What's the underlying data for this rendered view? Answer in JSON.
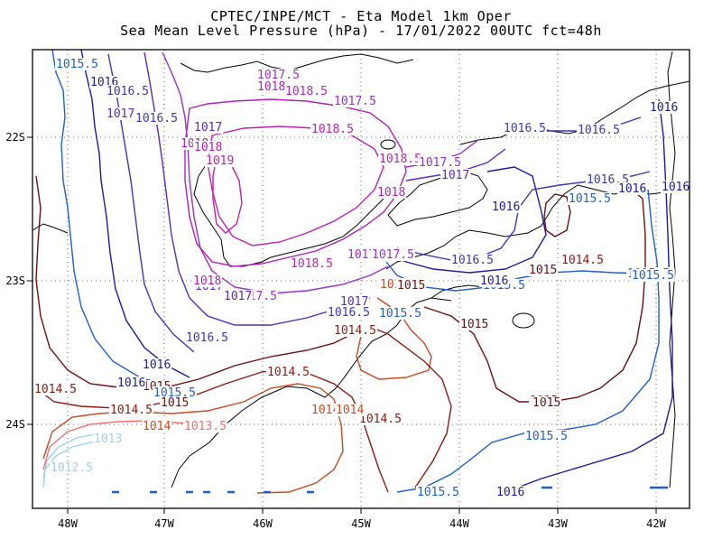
{
  "title_line1": "CPTEC/INPE/MCT -  Eta Model 1km Oper",
  "title_line2": "Sea Mean Level Pressure (hPa) - 17/01/2022 00UTC fct=48h",
  "axes": {
    "x_ticks": [
      "48W",
      "47W",
      "46W",
      "45W",
      "44W",
      "43W",
      "42W"
    ],
    "y_ticks": [
      "22S",
      "23S",
      "24S"
    ]
  },
  "colors": {
    "c1012_5": "#9fd0f0",
    "c1013": "#9fd0f0",
    "c1013_5": "#f07070",
    "c1014": "#c84a20",
    "c1014_5": "#8b1a10",
    "c1015": "#6b0f0f",
    "c1015_5": "#1e5fc8",
    "c1016": "#1a1aa0",
    "c1016_5": "#3a38b8",
    "c1017": "#5a2ab8",
    "c1017_5": "#9a30c8",
    "c1018": "#b020b8",
    "c1018_5": "#c020b0",
    "c1019": "#c81aa8"
  },
  "contour_labels": [
    {
      "text": "1015.5",
      "color": "#1e5fc8"
    },
    {
      "text": "1016",
      "color": "#1a1aa0"
    },
    {
      "text": "1016.5",
      "color": "#3a38b8"
    },
    {
      "text": "1017",
      "color": "#5a2ab8"
    },
    {
      "text": "1017.5",
      "color": "#9a30c8"
    },
    {
      "text": "1018",
      "color": "#b020b8"
    },
    {
      "text": "1018.5",
      "color": "#c020b0"
    },
    {
      "text": "1019",
      "color": "#c81aa8"
    },
    {
      "text": "1016.5",
      "color": "#3a38b8"
    },
    {
      "text": "1017",
      "color": "#5a2ab8"
    },
    {
      "text": "1017.5",
      "color": "#9a30c8"
    },
    {
      "text": "1018",
      "color": "#b020b8"
    },
    {
      "text": "1018.5",
      "color": "#c020b0"
    },
    {
      "text": "1018.5",
      "color": "#c020b0"
    },
    {
      "text": "1017.5",
      "color": "#9a30c8"
    },
    {
      "text": "1017",
      "color": "#5a2ab8"
    },
    {
      "text": "1018",
      "color": "#b020b8"
    },
    {
      "text": "1016",
      "color": "#1a1aa0"
    },
    {
      "text": "1016.5",
      "color": "#3a38b8"
    },
    {
      "text": "1016.5",
      "color": "#3a38b8"
    },
    {
      "text": "1016",
      "color": "#1a1aa0"
    },
    {
      "text": "1016.5",
      "color": "#3a38b8"
    },
    {
      "text": "1015.5",
      "color": "#1e5fc8"
    },
    {
      "text": "1016",
      "color": "#1a1aa0"
    },
    {
      "text": "1015",
      "color": "#6b0f0f"
    },
    {
      "text": "1014.5",
      "color": "#8b1a10"
    },
    {
      "text": "1015.5",
      "color": "#1e5fc8"
    },
    {
      "text": "1016",
      "color": "#1a1aa0"
    },
    {
      "text": "1016.5",
      "color": "#3a38b8"
    },
    {
      "text": "1015.5",
      "color": "#1e5fc8"
    },
    {
      "text": "1015",
      "color": "#6b0f0f"
    },
    {
      "text": "1017.5",
      "color": "#9a30c8"
    },
    {
      "text": "1017",
      "color": "#5a2ab8"
    },
    {
      "text": "1016.5",
      "color": "#3a38b8"
    },
    {
      "text": "1014",
      "color": "#c84a20"
    },
    {
      "text": "1015.5",
      "color": "#1e5fc8"
    },
    {
      "text": "1015",
      "color": "#6b0f0f"
    },
    {
      "text": "1014.5",
      "color": "#8b1a10"
    },
    {
      "text": "1014",
      "color": "#c84a20"
    },
    {
      "text": "1014.5",
      "color": "#8b1a10"
    },
    {
      "text": "1015",
      "color": "#6b0f0f"
    },
    {
      "text": "1015.5",
      "color": "#1e5fc8"
    },
    {
      "text": "1015.5",
      "color": "#1e5fc8"
    },
    {
      "text": "1016",
      "color": "#1a1aa0"
    },
    {
      "text": "1016",
      "color": "#1a1aa0"
    },
    {
      "text": "1015",
      "color": "#6b0f0f"
    },
    {
      "text": "1015.5",
      "color": "#1e5fc8"
    },
    {
      "text": "1016",
      "color": "#1a1aa0"
    },
    {
      "text": "1016.5",
      "color": "#3a38b8"
    },
    {
      "text": "1017",
      "color": "#5a2ab8"
    },
    {
      "text": "1018",
      "color": "#b020b8"
    },
    {
      "text": "1017.5",
      "color": "#9a30c8"
    },
    {
      "text": "1015",
      "color": "#6b0f0f"
    },
    {
      "text": "1014.5",
      "color": "#8b1a10"
    },
    {
      "text": "1014",
      "color": "#c84a20"
    },
    {
      "text": "1013.5",
      "color": "#f07070"
    },
    {
      "text": "1013",
      "color": "#9fd0f0"
    },
    {
      "text": "1012.5",
      "color": "#9fd0f0"
    },
    {
      "text": "1014.5",
      "color": "#8b1a10"
    },
    {
      "text": "1014.5",
      "color": "#8b1a10"
    },
    {
      "text": "1017.5",
      "color": "#9a30c8"
    },
    {
      "text": "1018.5",
      "color": "#c020b0"
    },
    {
      "text": "1018",
      "color": "#b020b8"
    },
    {
      "text": "1016",
      "color": "#1a1aa0"
    },
    {
      "text": "1017",
      "color": "#5a2ab8"
    },
    {
      "text": "1014",
      "color": "#c84a20"
    },
    {
      "text": "1015",
      "color": "#6b0f0f"
    },
    {
      "text": "1015.5",
      "color": "#1e5fc8"
    },
    {
      "text": "1015",
      "color": "#6b0f0f"
    }
  ]
}
